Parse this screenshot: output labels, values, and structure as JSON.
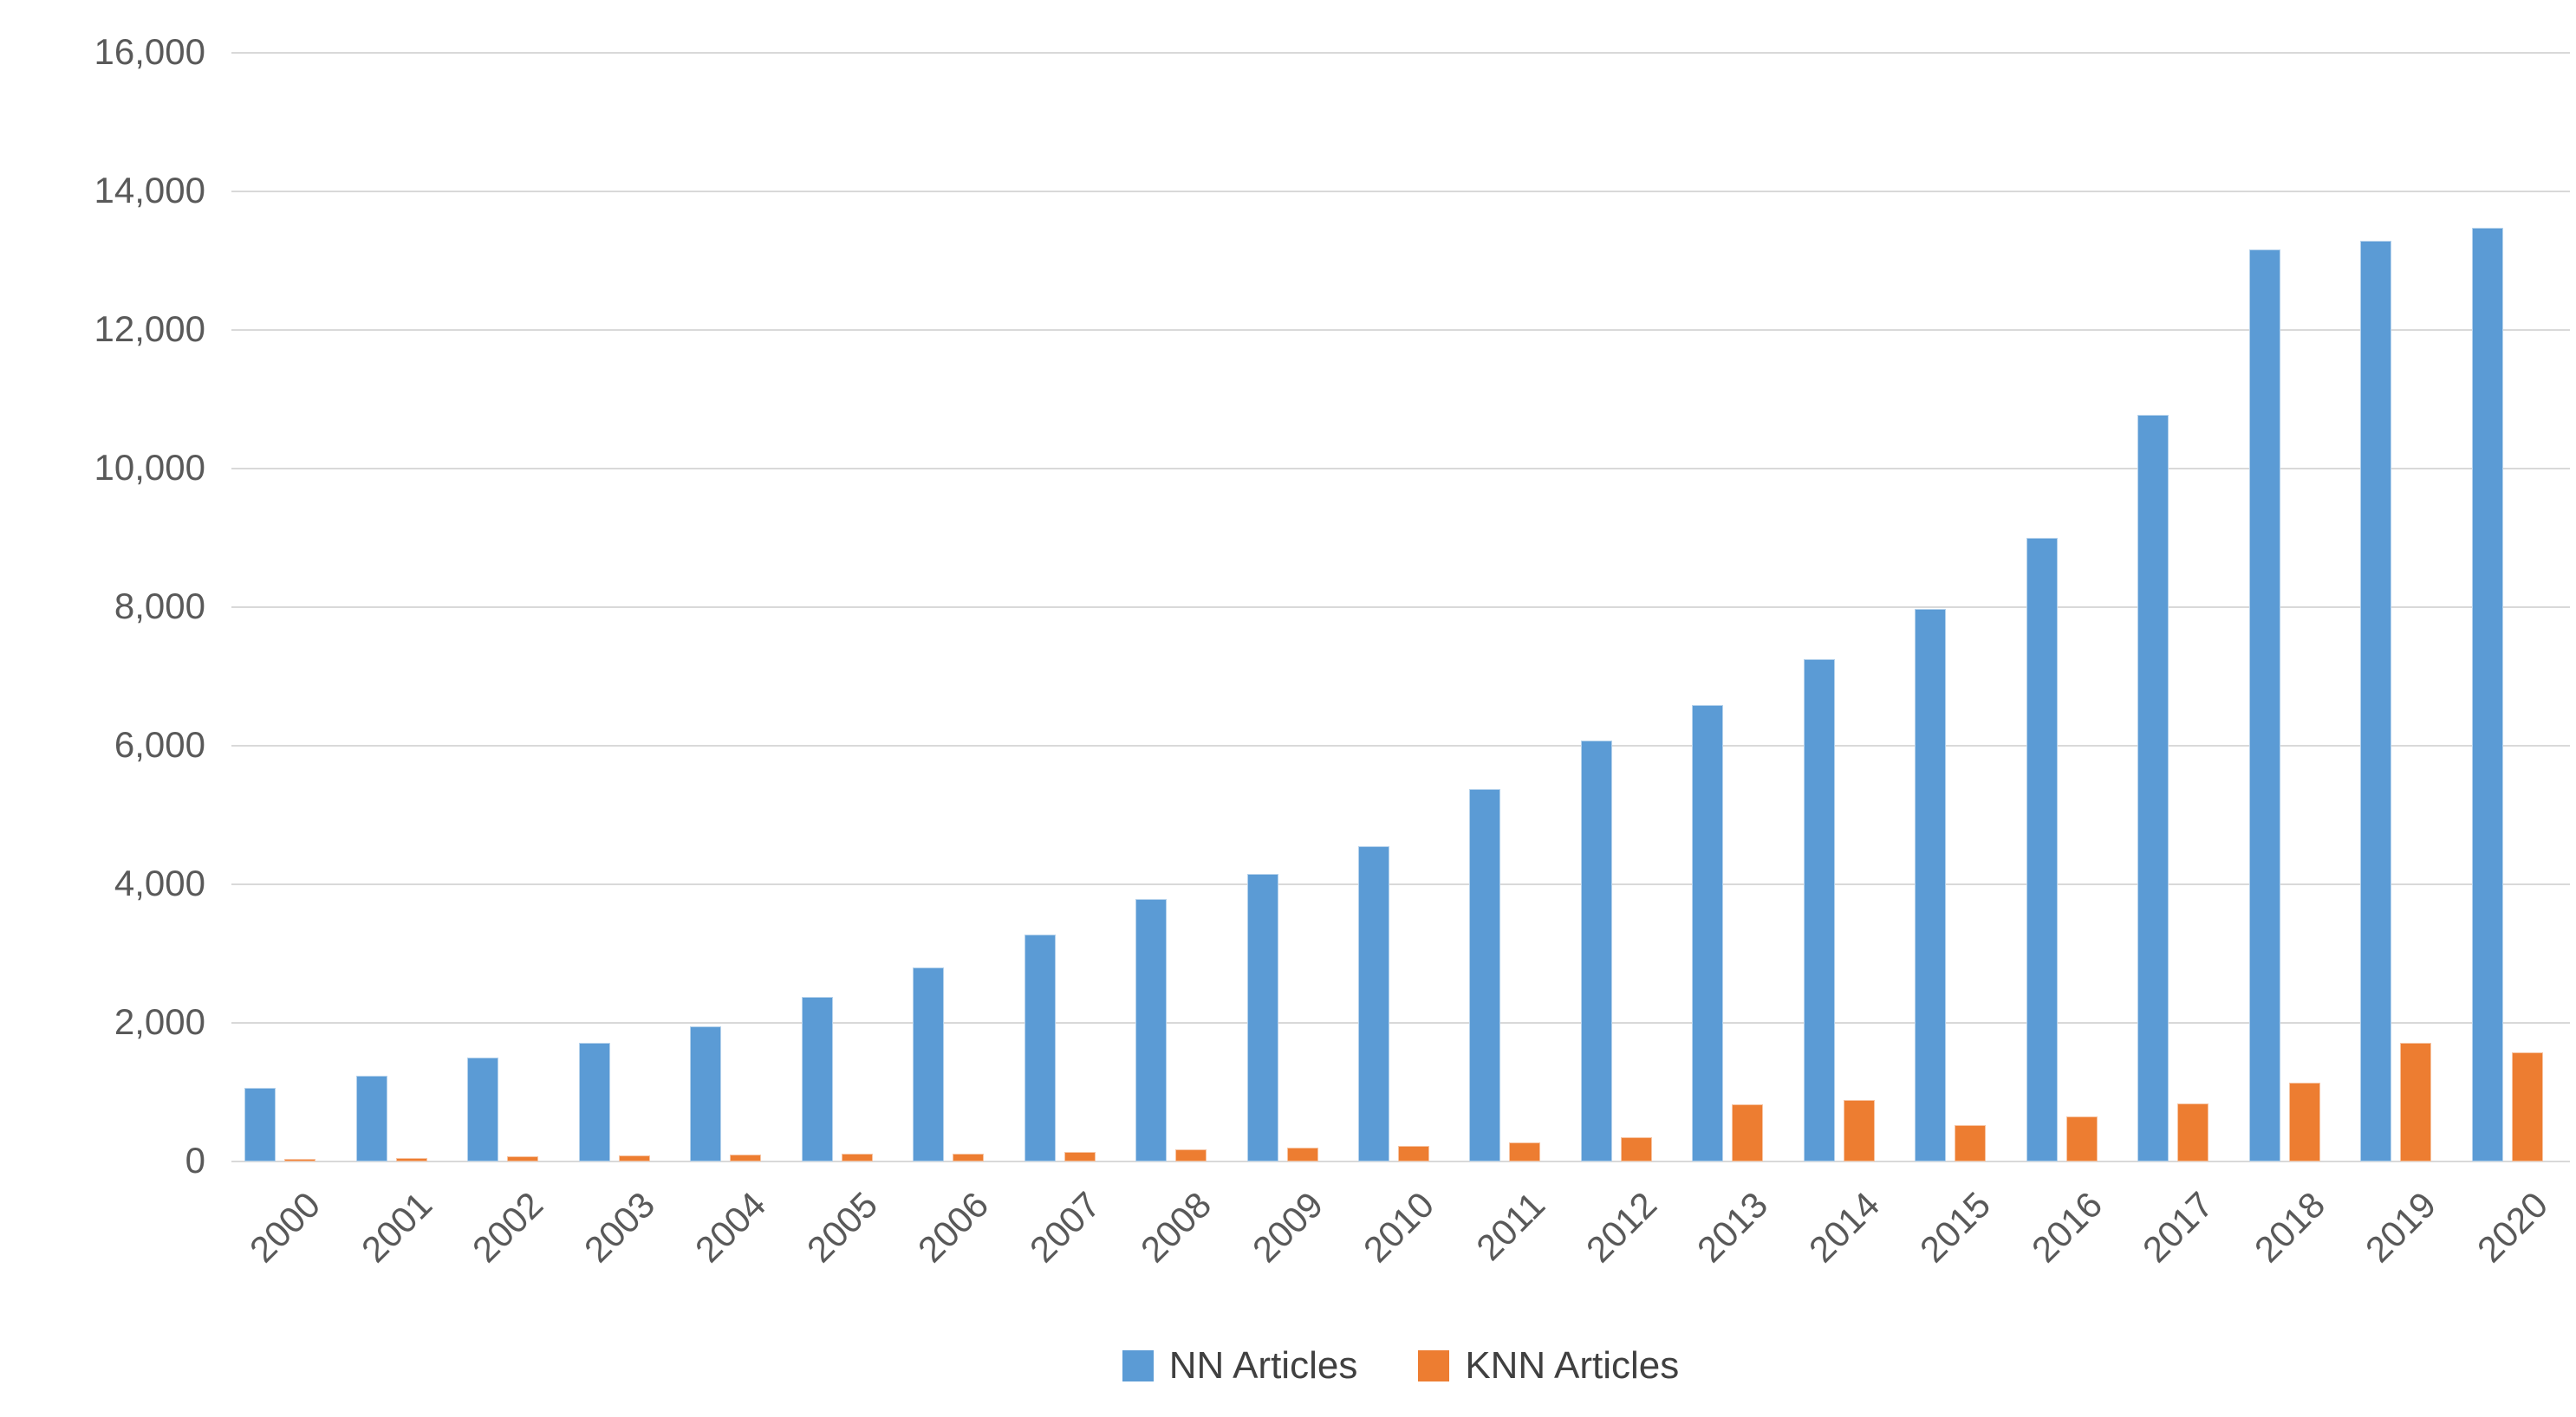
{
  "chart_data": {
    "type": "bar",
    "title": "",
    "xlabel": "",
    "ylabel": "",
    "categories": [
      "2000",
      "2001",
      "2002",
      "2003",
      "2004",
      "2005",
      "2006",
      "2007",
      "2008",
      "2009",
      "2010",
      "2011",
      "2012",
      "2013",
      "2014",
      "2015",
      "2016",
      "2017",
      "2018",
      "2019",
      "2020"
    ],
    "series": [
      {
        "name": "NN Articles",
        "color": "#5B9BD5",
        "values": [
          1060,
          1240,
          1500,
          1710,
          1950,
          2370,
          2800,
          3280,
          3790,
          4150,
          4550,
          5380,
          6080,
          6590,
          7250,
          7980,
          9000,
          10780,
          13160,
          13290,
          13470
        ]
      },
      {
        "name": "KNN Articles",
        "color": "#ED7D31",
        "values": [
          40,
          50,
          80,
          90,
          95,
          115,
          110,
          135,
          170,
          200,
          225,
          280,
          345,
          820,
          890,
          530,
          650,
          835,
          1140,
          1710,
          1580
        ]
      }
    ],
    "ylim": [
      0,
      16000
    ],
    "ytick_step": 2000,
    "ytick_labels": [
      "0",
      "2,000",
      "4,000",
      "6,000",
      "8,000",
      "10,000",
      "12,000",
      "14,000",
      "16,000"
    ],
    "grid": true,
    "legend_position": "bottom",
    "xtick_rotation_deg": -45
  },
  "colors": {
    "grid": "#D9D9D9",
    "axis_text": "#595959",
    "background": "#FFFFFF"
  }
}
